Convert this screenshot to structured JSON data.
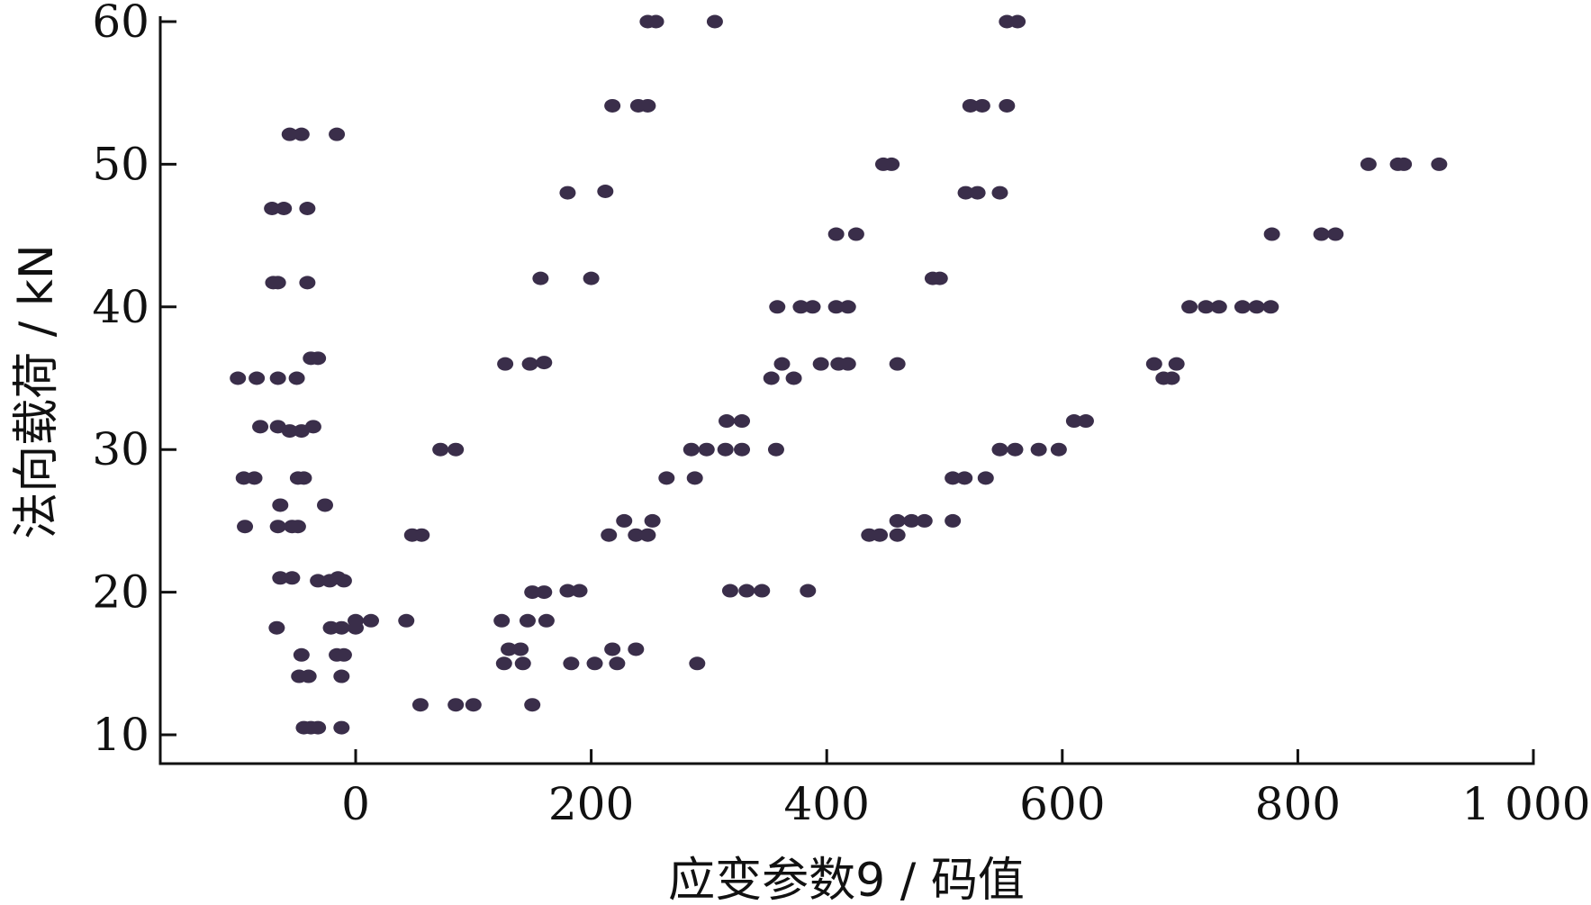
{
  "chart_data": {
    "type": "scatter",
    "xlabel": "应变参数9 / 码值",
    "ylabel": "法向载荷 / kN",
    "xlim": [
      -82,
      1000
    ],
    "ylim": [
      8,
      60
    ],
    "xticks": [
      0,
      200,
      400,
      600,
      800,
      1000
    ],
    "xtick_labels": [
      "0",
      "200",
      "400",
      "600",
      "800",
      "1 000"
    ],
    "yticks": [
      10,
      20,
      30,
      40,
      50,
      60
    ],
    "ytick_labels": [
      "10",
      "20",
      "30",
      "40",
      "50",
      "60"
    ],
    "grid": false,
    "marker_color": "#3a2e4a",
    "points": [
      {
        "x": -56,
        "y": 52.1
      },
      {
        "x": -46,
        "y": 52.1
      },
      {
        "x": -16,
        "y": 52.1
      },
      {
        "x": -71,
        "y": 46.9
      },
      {
        "x": -61,
        "y": 46.9
      },
      {
        "x": -41,
        "y": 46.9
      },
      {
        "x": -70,
        "y": 41.7
      },
      {
        "x": -66,
        "y": 41.7
      },
      {
        "x": -41,
        "y": 41.7
      },
      {
        "x": -38,
        "y": 36.4
      },
      {
        "x": -32,
        "y": 36.4
      },
      {
        "x": -100,
        "y": 35.0
      },
      {
        "x": -84,
        "y": 35.0
      },
      {
        "x": -66,
        "y": 35.0
      },
      {
        "x": -50,
        "y": 35.0
      },
      {
        "x": -81,
        "y": 31.6
      },
      {
        "x": -66,
        "y": 31.6
      },
      {
        "x": -56,
        "y": 31.3
      },
      {
        "x": -46,
        "y": 31.3
      },
      {
        "x": -36,
        "y": 31.6
      },
      {
        "x": -95,
        "y": 28.0
      },
      {
        "x": -86,
        "y": 28.0
      },
      {
        "x": -49,
        "y": 28.0
      },
      {
        "x": -44,
        "y": 28.0
      },
      {
        "x": -64,
        "y": 26.1
      },
      {
        "x": -26,
        "y": 26.1
      },
      {
        "x": -94,
        "y": 24.6
      },
      {
        "x": -66,
        "y": 24.6
      },
      {
        "x": -54,
        "y": 24.6
      },
      {
        "x": -49,
        "y": 24.6
      },
      {
        "x": -64,
        "y": 21.0
      },
      {
        "x": -54,
        "y": 21.0
      },
      {
        "x": -32,
        "y": 20.8
      },
      {
        "x": -22,
        "y": 20.8
      },
      {
        "x": -15,
        "y": 21.0
      },
      {
        "x": -10,
        "y": 20.8
      },
      {
        "x": -67,
        "y": 17.5
      },
      {
        "x": -21,
        "y": 17.5
      },
      {
        "x": -12,
        "y": 17.5
      },
      {
        "x": 0,
        "y": 17.5
      },
      {
        "x": -46,
        "y": 15.6
      },
      {
        "x": -16,
        "y": 15.6
      },
      {
        "x": -10,
        "y": 15.6
      },
      {
        "x": -48,
        "y": 14.1
      },
      {
        "x": -40,
        "y": 14.1
      },
      {
        "x": -12,
        "y": 14.1
      },
      {
        "x": -44,
        "y": 10.5
      },
      {
        "x": -38,
        "y": 10.5
      },
      {
        "x": -32,
        "y": 10.5
      },
      {
        "x": -12,
        "y": 10.5
      },
      {
        "x": 0,
        "y": 18.0
      },
      {
        "x": 13,
        "y": 18.0
      },
      {
        "x": 43,
        "y": 18.0
      },
      {
        "x": 48,
        "y": 24.0
      },
      {
        "x": 56,
        "y": 24.0
      },
      {
        "x": 72,
        "y": 30.0
      },
      {
        "x": 85,
        "y": 30.0
      },
      {
        "x": 55,
        "y": 12.1
      },
      {
        "x": 85,
        "y": 12.1
      },
      {
        "x": 100,
        "y": 12.1
      },
      {
        "x": 127,
        "y": 36.0
      },
      {
        "x": 148,
        "y": 36.0
      },
      {
        "x": 160,
        "y": 36.1
      },
      {
        "x": 124,
        "y": 18.0
      },
      {
        "x": 146,
        "y": 18.0
      },
      {
        "x": 162,
        "y": 18.0
      },
      {
        "x": 130,
        "y": 16.0
      },
      {
        "x": 140,
        "y": 16.0
      },
      {
        "x": 126,
        "y": 15.0
      },
      {
        "x": 142,
        "y": 15.0
      },
      {
        "x": 150,
        "y": 12.1
      },
      {
        "x": 157,
        "y": 42.0
      },
      {
        "x": 200,
        "y": 42.0
      },
      {
        "x": 180,
        "y": 48.0
      },
      {
        "x": 212,
        "y": 48.1
      },
      {
        "x": 218,
        "y": 54.1
      },
      {
        "x": 240,
        "y": 54.1
      },
      {
        "x": 248,
        "y": 54.1
      },
      {
        "x": 150,
        "y": 20.0
      },
      {
        "x": 160,
        "y": 20.0
      },
      {
        "x": 180,
        "y": 20.1
      },
      {
        "x": 190,
        "y": 20.1
      },
      {
        "x": 183,
        "y": 15.0
      },
      {
        "x": 203,
        "y": 15.0
      },
      {
        "x": 222,
        "y": 15.0
      },
      {
        "x": 218,
        "y": 16.0
      },
      {
        "x": 238,
        "y": 16.0
      },
      {
        "x": 215,
        "y": 24.0
      },
      {
        "x": 228,
        "y": 25.0
      },
      {
        "x": 238,
        "y": 24.0
      },
      {
        "x": 248,
        "y": 24.0
      },
      {
        "x": 252,
        "y": 25.0
      },
      {
        "x": 248,
        "y": 60.0
      },
      {
        "x": 255,
        "y": 60.0
      },
      {
        "x": 305,
        "y": 60.0
      },
      {
        "x": 264,
        "y": 28.0
      },
      {
        "x": 288,
        "y": 28.0
      },
      {
        "x": 285,
        "y": 30.0
      },
      {
        "x": 298,
        "y": 30.0
      },
      {
        "x": 290,
        "y": 15.0
      },
      {
        "x": 315,
        "y": 32.0
      },
      {
        "x": 328,
        "y": 32.0
      },
      {
        "x": 314,
        "y": 30.0
      },
      {
        "x": 328,
        "y": 30.0
      },
      {
        "x": 318,
        "y": 20.1
      },
      {
        "x": 332,
        "y": 20.1
      },
      {
        "x": 345,
        "y": 20.1
      },
      {
        "x": 357,
        "y": 30.0
      },
      {
        "x": 353,
        "y": 35.0
      },
      {
        "x": 362,
        "y": 36.0
      },
      {
        "x": 372,
        "y": 35.0
      },
      {
        "x": 358,
        "y": 40.0
      },
      {
        "x": 378,
        "y": 40.0
      },
      {
        "x": 388,
        "y": 40.0
      },
      {
        "x": 384,
        "y": 20.1
      },
      {
        "x": 395,
        "y": 36.0
      },
      {
        "x": 410,
        "y": 36.0
      },
      {
        "x": 418,
        "y": 36.0
      },
      {
        "x": 408,
        "y": 40.0
      },
      {
        "x": 418,
        "y": 40.0
      },
      {
        "x": 408,
        "y": 45.1
      },
      {
        "x": 425,
        "y": 45.1
      },
      {
        "x": 436,
        "y": 24.0
      },
      {
        "x": 445,
        "y": 24.0
      },
      {
        "x": 460,
        "y": 24.0
      },
      {
        "x": 448,
        "y": 50.0
      },
      {
        "x": 455,
        "y": 50.0
      },
      {
        "x": 460,
        "y": 36.0
      },
      {
        "x": 460,
        "y": 25.0
      },
      {
        "x": 472,
        "y": 25.0
      },
      {
        "x": 483,
        "y": 25.0
      },
      {
        "x": 490,
        "y": 42.0
      },
      {
        "x": 496,
        "y": 42.0
      },
      {
        "x": 507,
        "y": 25.0
      },
      {
        "x": 507,
        "y": 28.0
      },
      {
        "x": 517,
        "y": 28.0
      },
      {
        "x": 535,
        "y": 28.0
      },
      {
        "x": 518,
        "y": 48.0
      },
      {
        "x": 528,
        "y": 48.0
      },
      {
        "x": 522,
        "y": 54.1
      },
      {
        "x": 532,
        "y": 54.1
      },
      {
        "x": 547,
        "y": 48.0
      },
      {
        "x": 553,
        "y": 54.1
      },
      {
        "x": 547,
        "y": 30.0
      },
      {
        "x": 560,
        "y": 30.0
      },
      {
        "x": 553,
        "y": 60.0
      },
      {
        "x": 562,
        "y": 60.0
      },
      {
        "x": 580,
        "y": 30.0
      },
      {
        "x": 597,
        "y": 30.0
      },
      {
        "x": 610,
        "y": 32.0
      },
      {
        "x": 620,
        "y": 32.0
      },
      {
        "x": 678,
        "y": 36.0
      },
      {
        "x": 686,
        "y": 35.0
      },
      {
        "x": 693,
        "y": 35.0
      },
      {
        "x": 697,
        "y": 36.0
      },
      {
        "x": 708,
        "y": 40.0
      },
      {
        "x": 722,
        "y": 40.0
      },
      {
        "x": 733,
        "y": 40.0
      },
      {
        "x": 753,
        "y": 40.0
      },
      {
        "x": 765,
        "y": 40.0
      },
      {
        "x": 777,
        "y": 40.0
      },
      {
        "x": 778,
        "y": 45.1
      },
      {
        "x": 820,
        "y": 45.1
      },
      {
        "x": 832,
        "y": 45.1
      },
      {
        "x": 860,
        "y": 50.0
      },
      {
        "x": 885,
        "y": 50.0
      },
      {
        "x": 890,
        "y": 50.0
      },
      {
        "x": 920,
        "y": 50.0
      }
    ]
  }
}
